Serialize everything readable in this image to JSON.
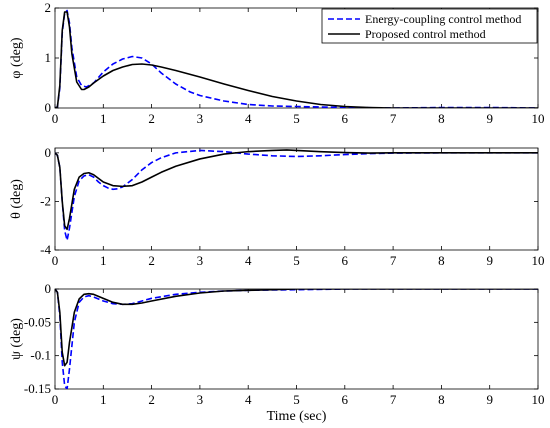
{
  "chart_data": [
    {
      "type": "line",
      "ylabel": "φ (deg)",
      "xlabel": "",
      "xlim": [
        0,
        10
      ],
      "ylim": [
        0,
        2
      ],
      "xticks": [
        "0",
        "1",
        "2",
        "3",
        "4",
        "5",
        "6",
        "7",
        "8",
        "9",
        "10"
      ],
      "yticks": [
        {
          "v": 0,
          "t": "0"
        },
        {
          "v": 1,
          "t": "1"
        },
        {
          "v": 2,
          "t": "2"
        }
      ],
      "grid": false,
      "legend_position": "top-right",
      "series": [
        {
          "name": "Energy-coupling control method",
          "color": "#0000ff",
          "dash": "dashed",
          "x": [
            0,
            0.05,
            0.1,
            0.15,
            0.2,
            0.25,
            0.3,
            0.35,
            0.45,
            0.55,
            0.65,
            0.8,
            1.0,
            1.2,
            1.4,
            1.6,
            1.8,
            2.0,
            2.2,
            2.5,
            2.8,
            3.0,
            3.5,
            4.0,
            4.5,
            5.0,
            5.5,
            6.0,
            7.0,
            8.0,
            9.0,
            10.0
          ],
          "y": [
            0,
            0.02,
            0.4,
            1.5,
            1.9,
            1.95,
            1.7,
            1.2,
            0.62,
            0.45,
            0.42,
            0.5,
            0.72,
            0.88,
            0.98,
            1.03,
            1.0,
            0.88,
            0.7,
            0.48,
            0.32,
            0.25,
            0.14,
            0.07,
            0.04,
            0.03,
            0.02,
            0.01,
            0.0,
            0.01,
            0.01,
            0.0
          ]
        },
        {
          "name": "Proposed control method",
          "color": "#000000",
          "dash": "solid",
          "x": [
            0,
            0.05,
            0.1,
            0.15,
            0.2,
            0.25,
            0.3,
            0.35,
            0.45,
            0.55,
            0.6,
            0.7,
            0.8,
            1.0,
            1.2,
            1.4,
            1.6,
            1.8,
            2.0,
            2.2,
            2.5,
            3.0,
            3.5,
            4.0,
            4.5,
            5.0,
            5.5,
            6.0,
            6.5,
            7.0,
            8.0,
            9.0,
            10.0
          ],
          "y": [
            0,
            0.02,
            0.45,
            1.55,
            1.92,
            1.92,
            1.62,
            1.08,
            0.52,
            0.37,
            0.37,
            0.42,
            0.5,
            0.64,
            0.75,
            0.82,
            0.87,
            0.88,
            0.86,
            0.82,
            0.75,
            0.62,
            0.48,
            0.35,
            0.23,
            0.14,
            0.07,
            0.03,
            0.01,
            0.0,
            0.0,
            0.0,
            0.0
          ]
        }
      ],
      "legend": [
        "Energy-coupling control method",
        "Proposed control method"
      ]
    },
    {
      "type": "line",
      "ylabel": "θ (deg)",
      "xlabel": "",
      "xlim": [
        0,
        10
      ],
      "ylim": [
        -4,
        0.2
      ],
      "xticks": [
        "0",
        "1",
        "2",
        "3",
        "4",
        "5",
        "6",
        "7",
        "8",
        "9",
        "10"
      ],
      "yticks": [
        {
          "v": -4,
          "t": "-4"
        },
        {
          "v": -2,
          "t": "-2"
        },
        {
          "v": 0,
          "t": "0"
        }
      ],
      "grid": false,
      "series": [
        {
          "name": "Energy-coupling control method",
          "color": "#0000ff",
          "dash": "dashed",
          "x": [
            0,
            0.05,
            0.1,
            0.15,
            0.2,
            0.25,
            0.3,
            0.4,
            0.5,
            0.6,
            0.7,
            0.8,
            0.9,
            1.0,
            1.1,
            1.2,
            1.3,
            1.4,
            1.6,
            1.8,
            2.0,
            2.2,
            2.5,
            3.0,
            3.5,
            4.0,
            4.5,
            5.0,
            5.5,
            6.0,
            6.5,
            7.0,
            8.0,
            9.0,
            10.0
          ],
          "y": [
            0,
            -0.1,
            -0.6,
            -2.0,
            -3.2,
            -3.6,
            -3.1,
            -1.8,
            -1.15,
            -0.95,
            -0.9,
            -1.0,
            -1.2,
            -1.35,
            -1.45,
            -1.5,
            -1.48,
            -1.4,
            -1.1,
            -0.7,
            -0.4,
            -0.2,
            0.0,
            0.1,
            0.05,
            -0.05,
            -0.12,
            -0.15,
            -0.12,
            -0.07,
            -0.03,
            -0.01,
            0.0,
            0.0,
            0.0
          ]
        },
        {
          "name": "Proposed control method",
          "color": "#000000",
          "dash": "solid",
          "x": [
            0,
            0.05,
            0.1,
            0.15,
            0.2,
            0.25,
            0.3,
            0.4,
            0.5,
            0.6,
            0.7,
            0.8,
            0.9,
            1.0,
            1.2,
            1.4,
            1.6,
            1.8,
            2.0,
            2.2,
            2.5,
            3.0,
            3.5,
            4.0,
            4.5,
            4.8,
            5.0,
            5.5,
            6.0,
            6.5,
            7.0,
            8.0,
            9.0,
            10.0
          ],
          "y": [
            0,
            -0.1,
            -0.6,
            -2.0,
            -3.0,
            -3.15,
            -2.7,
            -1.5,
            -1.0,
            -0.85,
            -0.82,
            -0.9,
            -1.05,
            -1.2,
            -1.35,
            -1.38,
            -1.35,
            -1.2,
            -1.0,
            -0.8,
            -0.55,
            -0.25,
            -0.05,
            0.05,
            0.1,
            0.12,
            0.1,
            0.05,
            0.01,
            -0.01,
            0.0,
            0.0,
            0.0,
            0.0
          ]
        }
      ]
    },
    {
      "type": "line",
      "ylabel": "ψ (deg)",
      "xlabel": "Time (sec)",
      "xlim": [
        0,
        10
      ],
      "ylim": [
        -0.15,
        0
      ],
      "xticks": [
        "0",
        "1",
        "2",
        "3",
        "4",
        "5",
        "6",
        "7",
        "8",
        "9",
        "10"
      ],
      "yticks": [
        {
          "v": -0.15,
          "t": "-0.15"
        },
        {
          "v": -0.1,
          "t": "-0.1"
        },
        {
          "v": -0.05,
          "t": "-0.05"
        },
        {
          "v": 0,
          "t": "0"
        }
      ],
      "grid": false,
      "series": [
        {
          "name": "Energy-coupling control method",
          "color": "#0000ff",
          "dash": "dashed",
          "x": [
            0,
            0.05,
            0.1,
            0.15,
            0.2,
            0.25,
            0.3,
            0.4,
            0.5,
            0.6,
            0.7,
            0.8,
            1.0,
            1.2,
            1.4,
            1.6,
            1.8,
            2.0,
            2.5,
            3.0,
            3.5,
            4.0,
            5.0,
            6.0,
            7.0,
            8.0,
            9.0,
            10.0
          ],
          "y": [
            0,
            -0.005,
            -0.04,
            -0.11,
            -0.145,
            -0.15,
            -0.12,
            -0.05,
            -0.02,
            -0.012,
            -0.01,
            -0.012,
            -0.018,
            -0.022,
            -0.023,
            -0.022,
            -0.018,
            -0.014,
            -0.008,
            -0.005,
            -0.003,
            -0.002,
            -0.001,
            0.0,
            0.0,
            0.0,
            0.0,
            0.0
          ]
        },
        {
          "name": "Proposed control method",
          "color": "#000000",
          "dash": "solid",
          "x": [
            0,
            0.05,
            0.1,
            0.15,
            0.2,
            0.25,
            0.3,
            0.4,
            0.5,
            0.6,
            0.7,
            0.8,
            1.0,
            1.2,
            1.4,
            1.6,
            1.8,
            2.0,
            2.5,
            3.0,
            3.5,
            4.0,
            4.5,
            5.0,
            6.0,
            7.0,
            8.0,
            9.0,
            10.0
          ],
          "y": [
            0,
            -0.005,
            -0.035,
            -0.095,
            -0.115,
            -0.11,
            -0.08,
            -0.035,
            -0.015,
            -0.008,
            -0.007,
            -0.008,
            -0.014,
            -0.02,
            -0.023,
            -0.023,
            -0.021,
            -0.018,
            -0.011,
            -0.006,
            -0.003,
            -0.002,
            -0.001,
            0.0,
            0.0,
            0.0,
            0.0,
            0.0,
            0.0
          ]
        }
      ]
    }
  ]
}
